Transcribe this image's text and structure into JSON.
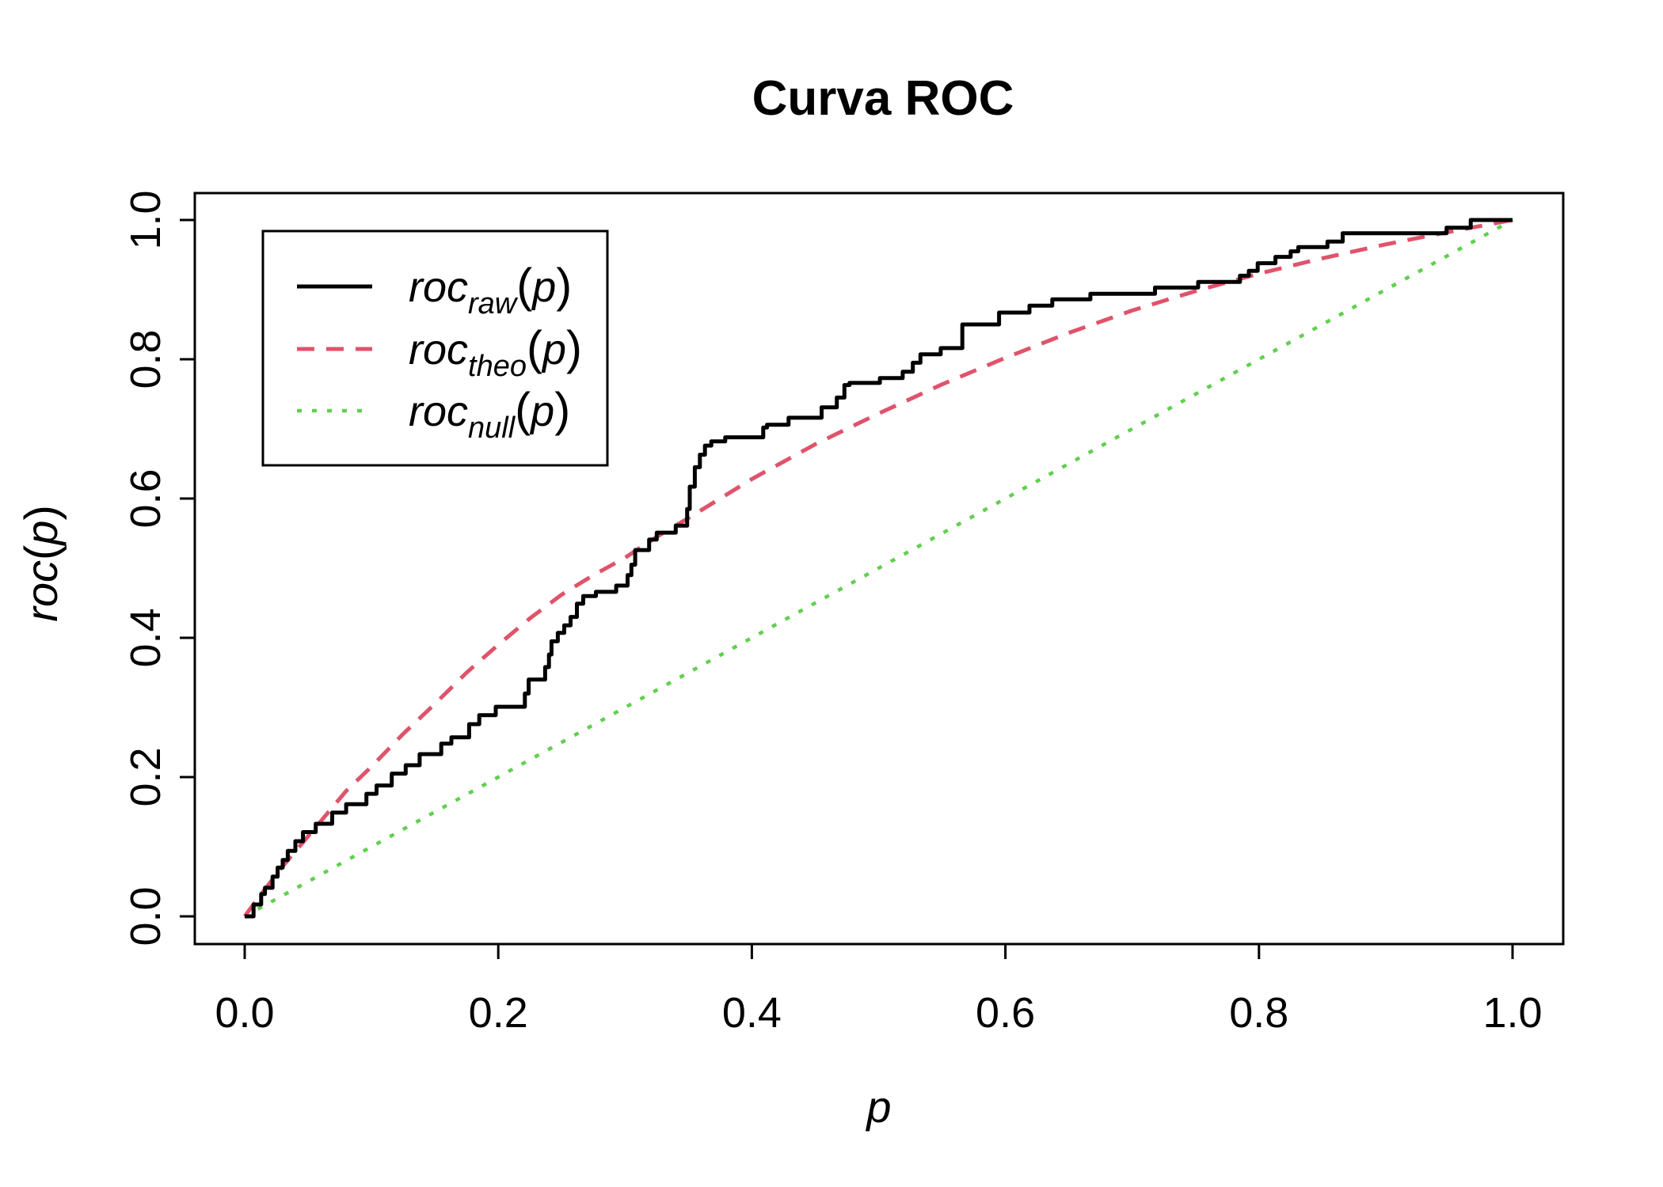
{
  "title": "Curva ROC",
  "axes": {
    "x": {
      "label": "p",
      "ticks": [
        0.0,
        0.2,
        0.4,
        0.6,
        0.8,
        1.0
      ],
      "tick_labels": [
        "0.0",
        "0.2",
        "0.4",
        "0.6",
        "0.8",
        "1.0"
      ],
      "range": [
        0,
        1
      ]
    },
    "y": {
      "label": "roc(p)",
      "label_parts": {
        "base": "roc",
        "arg": "p"
      },
      "ticks": [
        0.0,
        0.2,
        0.4,
        0.6,
        0.8,
        1.0
      ],
      "tick_labels": [
        "0.0",
        "0.2",
        "0.4",
        "0.6",
        "0.8",
        "1.0"
      ],
      "range": [
        0,
        1
      ]
    }
  },
  "colors": {
    "raw": "#000000",
    "theo": "#DF536B",
    "null": "#61D04F",
    "axis": "#000000",
    "background": "#ffffff"
  },
  "legend": {
    "position": "top-left",
    "items": [
      {
        "id": "roc-raw",
        "label": "roc_raw(p)",
        "base": "roc",
        "sub": "raw",
        "arg": "p",
        "color": "#000000",
        "line_style": "solid"
      },
      {
        "id": "roc-theo",
        "label": "roc_theo(p)",
        "base": "roc",
        "sub": "theo",
        "arg": "p",
        "color": "#DF536B",
        "line_style": "dashed"
      },
      {
        "id": "roc-null",
        "label": "roc_null(p)",
        "base": "roc",
        "sub": "null",
        "arg": "p",
        "color": "#61D04F",
        "line_style": "dotted"
      }
    ]
  },
  "chart_data": {
    "type": "line",
    "title": "Curva ROC",
    "xlabel": "p",
    "ylabel": "roc(p)",
    "xlim": [
      0,
      1
    ],
    "ylim": [
      0,
      1
    ],
    "grid": false,
    "legend_position": "top-left",
    "series": [
      {
        "id": "roc-raw",
        "name": "roc_raw(p)",
        "color": "#000000",
        "line_style": "solid",
        "step": true,
        "points": [
          [
            0,
            0
          ],
          [
            0.007,
            0
          ],
          [
            0.007,
            0.017
          ],
          [
            0.013,
            0.017
          ],
          [
            0.013,
            0.032
          ],
          [
            0.016,
            0.032
          ],
          [
            0.016,
            0.041
          ],
          [
            0.022,
            0.041
          ],
          [
            0.022,
            0.057
          ],
          [
            0.026,
            0.057
          ],
          [
            0.026,
            0.07
          ],
          [
            0.03,
            0.07
          ],
          [
            0.03,
            0.081
          ],
          [
            0.034,
            0.081
          ],
          [
            0.034,
            0.094
          ],
          [
            0.04,
            0.094
          ],
          [
            0.04,
            0.108
          ],
          [
            0.046,
            0.108
          ],
          [
            0.046,
            0.121
          ],
          [
            0.056,
            0.121
          ],
          [
            0.056,
            0.133
          ],
          [
            0.069,
            0.133
          ],
          [
            0.069,
            0.149
          ],
          [
            0.08,
            0.149
          ],
          [
            0.08,
            0.161
          ],
          [
            0.096,
            0.161
          ],
          [
            0.096,
            0.176
          ],
          [
            0.104,
            0.176
          ],
          [
            0.104,
            0.188
          ],
          [
            0.116,
            0.188
          ],
          [
            0.116,
            0.205
          ],
          [
            0.127,
            0.205
          ],
          [
            0.127,
            0.217
          ],
          [
            0.138,
            0.217
          ],
          [
            0.138,
            0.233
          ],
          [
            0.155,
            0.233
          ],
          [
            0.155,
            0.248
          ],
          [
            0.163,
            0.248
          ],
          [
            0.163,
            0.257
          ],
          [
            0.177,
            0.257
          ],
          [
            0.177,
            0.276
          ],
          [
            0.185,
            0.276
          ],
          [
            0.185,
            0.289
          ],
          [
            0.198,
            0.289
          ],
          [
            0.198,
            0.301
          ],
          [
            0.221,
            0.301
          ],
          [
            0.221,
            0.32
          ],
          [
            0.224,
            0.32
          ],
          [
            0.224,
            0.34
          ],
          [
            0.237,
            0.34
          ],
          [
            0.237,
            0.358
          ],
          [
            0.24,
            0.358
          ],
          [
            0.24,
            0.376
          ],
          [
            0.242,
            0.376
          ],
          [
            0.242,
            0.395
          ],
          [
            0.247,
            0.395
          ],
          [
            0.247,
            0.407
          ],
          [
            0.252,
            0.407
          ],
          [
            0.252,
            0.418
          ],
          [
            0.257,
            0.418
          ],
          [
            0.257,
            0.43
          ],
          [
            0.262,
            0.43
          ],
          [
            0.262,
            0.449
          ],
          [
            0.267,
            0.449
          ],
          [
            0.267,
            0.46
          ],
          [
            0.277,
            0.46
          ],
          [
            0.277,
            0.466
          ],
          [
            0.293,
            0.466
          ],
          [
            0.293,
            0.475
          ],
          [
            0.302,
            0.475
          ],
          [
            0.302,
            0.49
          ],
          [
            0.305,
            0.49
          ],
          [
            0.305,
            0.505
          ],
          [
            0.308,
            0.505
          ],
          [
            0.308,
            0.526
          ],
          [
            0.319,
            0.526
          ],
          [
            0.319,
            0.541
          ],
          [
            0.325,
            0.541
          ],
          [
            0.325,
            0.551
          ],
          [
            0.34,
            0.551
          ],
          [
            0.34,
            0.561
          ],
          [
            0.349,
            0.561
          ],
          [
            0.349,
            0.585
          ],
          [
            0.351,
            0.585
          ],
          [
            0.351,
            0.617
          ],
          [
            0.355,
            0.617
          ],
          [
            0.355,
            0.645
          ],
          [
            0.359,
            0.645
          ],
          [
            0.359,
            0.663
          ],
          [
            0.363,
            0.663
          ],
          [
            0.363,
            0.676
          ],
          [
            0.368,
            0.676
          ],
          [
            0.368,
            0.682
          ],
          [
            0.379,
            0.682
          ],
          [
            0.379,
            0.688
          ],
          [
            0.409,
            0.688
          ],
          [
            0.409,
            0.702
          ],
          [
            0.412,
            0.702
          ],
          [
            0.412,
            0.706
          ],
          [
            0.429,
            0.706
          ],
          [
            0.429,
            0.716
          ],
          [
            0.455,
            0.716
          ],
          [
            0.455,
            0.731
          ],
          [
            0.467,
            0.731
          ],
          [
            0.467,
            0.745
          ],
          [
            0.473,
            0.745
          ],
          [
            0.473,
            0.763
          ],
          [
            0.477,
            0.763
          ],
          [
            0.477,
            0.766
          ],
          [
            0.501,
            0.766
          ],
          [
            0.501,
            0.773
          ],
          [
            0.519,
            0.773
          ],
          [
            0.519,
            0.782
          ],
          [
            0.527,
            0.782
          ],
          [
            0.527,
            0.795
          ],
          [
            0.533,
            0.795
          ],
          [
            0.533,
            0.807
          ],
          [
            0.549,
            0.807
          ],
          [
            0.549,
            0.816
          ],
          [
            0.566,
            0.816
          ],
          [
            0.566,
            0.85
          ],
          [
            0.595,
            0.85
          ],
          [
            0.595,
            0.867
          ],
          [
            0.619,
            0.867
          ],
          [
            0.619,
            0.877
          ],
          [
            0.637,
            0.877
          ],
          [
            0.637,
            0.886
          ],
          [
            0.667,
            0.886
          ],
          [
            0.667,
            0.894
          ],
          [
            0.718,
            0.894
          ],
          [
            0.718,
            0.903
          ],
          [
            0.752,
            0.903
          ],
          [
            0.752,
            0.911
          ],
          [
            0.785,
            0.911
          ],
          [
            0.785,
            0.92
          ],
          [
            0.792,
            0.92
          ],
          [
            0.792,
            0.927
          ],
          [
            0.799,
            0.927
          ],
          [
            0.799,
            0.938
          ],
          [
            0.813,
            0.938
          ],
          [
            0.813,
            0.947
          ],
          [
            0.825,
            0.947
          ],
          [
            0.825,
            0.955
          ],
          [
            0.831,
            0.955
          ],
          [
            0.831,
            0.961
          ],
          [
            0.854,
            0.961
          ],
          [
            0.854,
            0.969
          ],
          [
            0.866,
            0.969
          ],
          [
            0.866,
            0.981
          ],
          [
            0.948,
            0.981
          ],
          [
            0.948,
            0.989
          ],
          [
            0.967,
            0.989
          ],
          [
            0.967,
            1
          ],
          [
            1,
            1
          ]
        ]
      },
      {
        "id": "roc-theo",
        "name": "roc_theo(p)",
        "color": "#DF536B",
        "line_style": "dashed",
        "step": false,
        "points": [
          [
            0,
            0
          ],
          [
            0.01,
            0.025
          ],
          [
            0.03,
            0.072
          ],
          [
            0.05,
            0.115
          ],
          [
            0.08,
            0.18
          ],
          [
            0.1,
            0.215
          ],
          [
            0.125,
            0.262
          ],
          [
            0.15,
            0.305
          ],
          [
            0.175,
            0.35
          ],
          [
            0.2,
            0.39
          ],
          [
            0.225,
            0.428
          ],
          [
            0.25,
            0.462
          ],
          [
            0.275,
            0.49
          ],
          [
            0.3,
            0.515
          ],
          [
            0.325,
            0.545
          ],
          [
            0.35,
            0.572
          ],
          [
            0.375,
            0.6
          ],
          [
            0.4,
            0.628
          ],
          [
            0.45,
            0.678
          ],
          [
            0.5,
            0.722
          ],
          [
            0.55,
            0.764
          ],
          [
            0.6,
            0.802
          ],
          [
            0.65,
            0.838
          ],
          [
            0.7,
            0.87
          ],
          [
            0.75,
            0.898
          ],
          [
            0.8,
            0.923
          ],
          [
            0.85,
            0.945
          ],
          [
            0.9,
            0.965
          ],
          [
            0.95,
            0.983
          ],
          [
            1,
            1
          ]
        ]
      },
      {
        "id": "roc-null",
        "name": "roc_null(p)",
        "color": "#61D04F",
        "line_style": "dotted",
        "step": false,
        "points": [
          [
            0,
            0
          ],
          [
            1,
            1
          ]
        ]
      }
    ]
  }
}
